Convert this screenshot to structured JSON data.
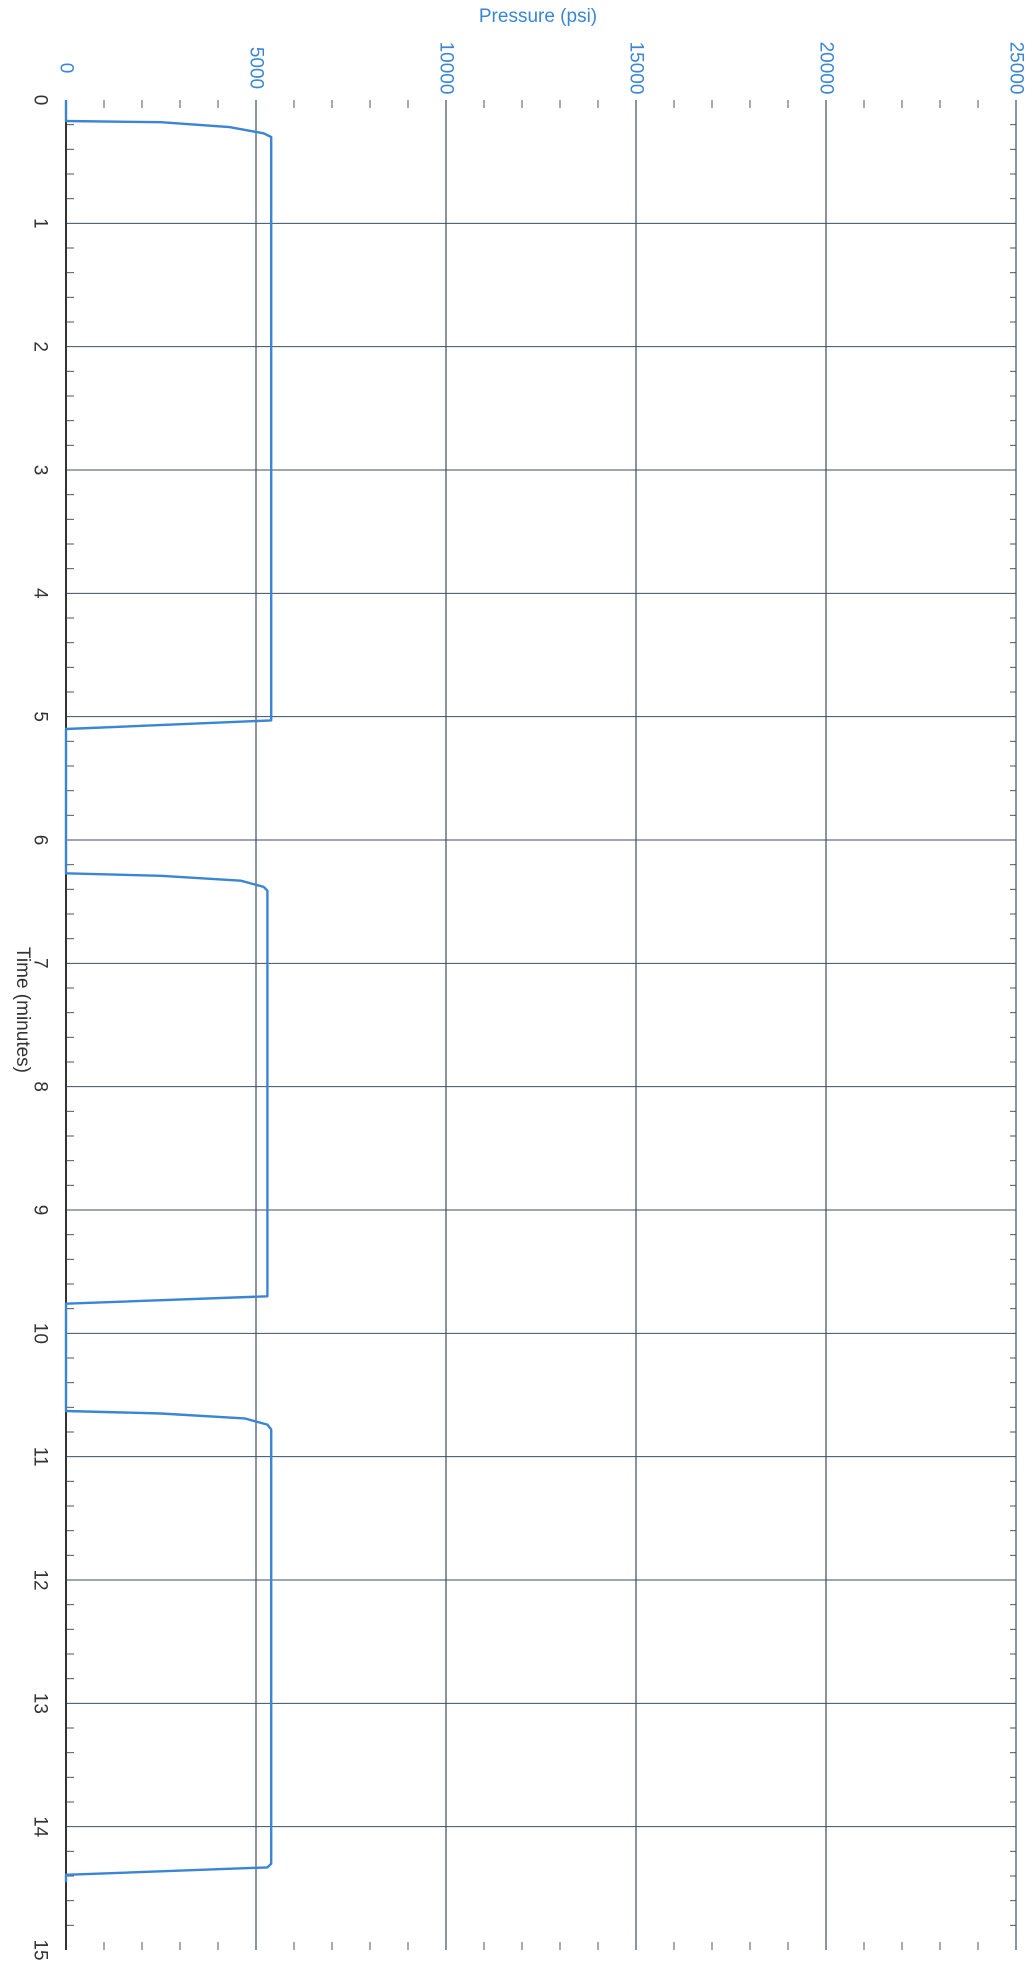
{
  "chart_data": {
    "type": "line",
    "orientation": "rotated-90-clockwise",
    "xlabel": "Time (minutes)",
    "ylabel": "Pressure (psi)",
    "xlim": [
      0,
      15
    ],
    "ylim": [
      0,
      25000
    ],
    "x_ticks": [
      "0",
      "1",
      "2",
      "3",
      "4",
      "5",
      "6",
      "7",
      "8",
      "9",
      "10",
      "11",
      "12",
      "13",
      "14",
      "15"
    ],
    "y_ticks": [
      "0",
      "5000",
      "10000",
      "15000",
      "20000",
      "25000"
    ],
    "grid": true,
    "colors": {
      "series": "#3a86d4",
      "pressure_axis_text": "#3a86d4",
      "time_axis_text": "#333333",
      "grid": "#3b4f63"
    },
    "series": [
      {
        "x": [
          0.0,
          0.17,
          0.18,
          0.22,
          0.27,
          0.3,
          4.95,
          5.03,
          5.1,
          6.0,
          6.27,
          6.29,
          6.33,
          6.38,
          6.41,
          9.7,
          9.76,
          9.82,
          10.0,
          10.63,
          10.65,
          10.69,
          10.74,
          10.78,
          14.3,
          14.33,
          14.39,
          14.45
        ],
        "y": [
          0,
          0,
          2500,
          4300,
          5200,
          5400,
          5400,
          5400,
          0,
          0,
          0,
          2500,
          4600,
          5200,
          5300,
          5300,
          0,
          0,
          0,
          0,
          2500,
          4700,
          5300,
          5400,
          5400,
          5300,
          0,
          0
        ]
      }
    ]
  }
}
